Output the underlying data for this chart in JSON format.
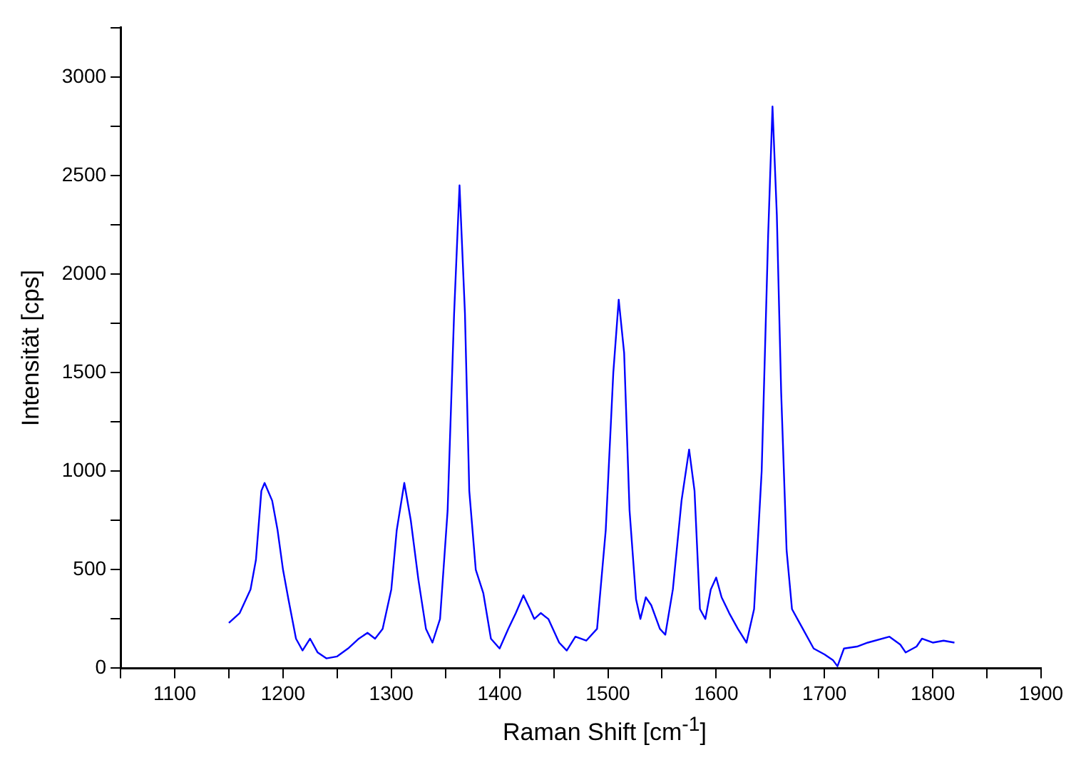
{
  "chart_data": {
    "type": "line",
    "xlabel": "Raman Shift [cm$^{-1}$]",
    "ylabel": "Intensität [cps]",
    "xlim": [
      1050,
      1900
    ],
    "ylim": [
      0,
      3250
    ],
    "xticks": [
      {
        "value": 1050,
        "label": null
      },
      1100,
      {
        "value": 1150,
        "label": null
      },
      1200,
      {
        "value": 1250,
        "label": null
      },
      1300,
      {
        "value": 1350,
        "label": null
      },
      1400,
      {
        "value": 1450,
        "label": null
      },
      1500,
      {
        "value": 1550,
        "label": null
      },
      1600,
      {
        "value": 1650,
        "label": null
      },
      1700,
      {
        "value": 1750,
        "label": null
      },
      1800,
      {
        "value": 1850,
        "label": null
      },
      1900
    ],
    "yticks": [
      0,
      {
        "value": 250,
        "label": null
      },
      500,
      {
        "value": 750,
        "label": null
      },
      1000,
      {
        "value": 1250,
        "label": null
      },
      1500,
      {
        "value": 1750,
        "label": null
      },
      2000,
      {
        "value": 2250,
        "label": null
      },
      2500,
      {
        "value": 2750,
        "label": null
      },
      3000,
      {
        "value": 3250,
        "label": null
      }
    ],
    "grid": false,
    "legend": false,
    "marker": "none",
    "line_style": "solid",
    "series": [
      {
        "color": "#0000ff",
        "x": [
          1150,
          1160,
          1170,
          1175,
          1180,
          1183,
          1190,
          1195,
          1200,
          1205,
          1212,
          1218,
          1225,
          1232,
          1240,
          1250,
          1260,
          1270,
          1278,
          1285,
          1292,
          1300,
          1305,
          1312,
          1318,
          1325,
          1332,
          1338,
          1345,
          1352,
          1358,
          1363,
          1368,
          1372,
          1378,
          1385,
          1392,
          1400,
          1408,
          1415,
          1422,
          1428,
          1432,
          1438,
          1445,
          1455,
          1462,
          1470,
          1480,
          1490,
          1498,
          1505,
          1510,
          1515,
          1520,
          1526,
          1530,
          1535,
          1540,
          1548,
          1553,
          1560,
          1568,
          1575,
          1580,
          1585,
          1590,
          1595,
          1600,
          1605,
          1612,
          1620,
          1628,
          1635,
          1642,
          1648,
          1652,
          1656,
          1660,
          1665,
          1670,
          1675,
          1680,
          1690,
          1700,
          1708,
          1712,
          1718,
          1730,
          1740,
          1760,
          1770,
          1775,
          1785,
          1790,
          1800,
          1810,
          1820
        ],
        "values": [
          230,
          280,
          400,
          550,
          900,
          940,
          850,
          700,
          500,
          350,
          150,
          90,
          150,
          80,
          50,
          60,
          100,
          150,
          180,
          150,
          200,
          400,
          700,
          940,
          750,
          450,
          200,
          130,
          250,
          800,
          1800,
          2450,
          1800,
          900,
          500,
          380,
          150,
          100,
          200,
          280,
          370,
          300,
          250,
          280,
          250,
          130,
          90,
          160,
          140,
          200,
          700,
          1500,
          1870,
          1600,
          800,
          350,
          250,
          360,
          320,
          200,
          170,
          400,
          850,
          1110,
          900,
          300,
          250,
          400,
          460,
          360,
          280,
          200,
          130,
          300,
          1000,
          2200,
          2850,
          2300,
          1400,
          600,
          300,
          250,
          200,
          100,
          70,
          40,
          10,
          100,
          110,
          130,
          160,
          120,
          80,
          110,
          150,
          130,
          140,
          130
        ]
      }
    ]
  }
}
